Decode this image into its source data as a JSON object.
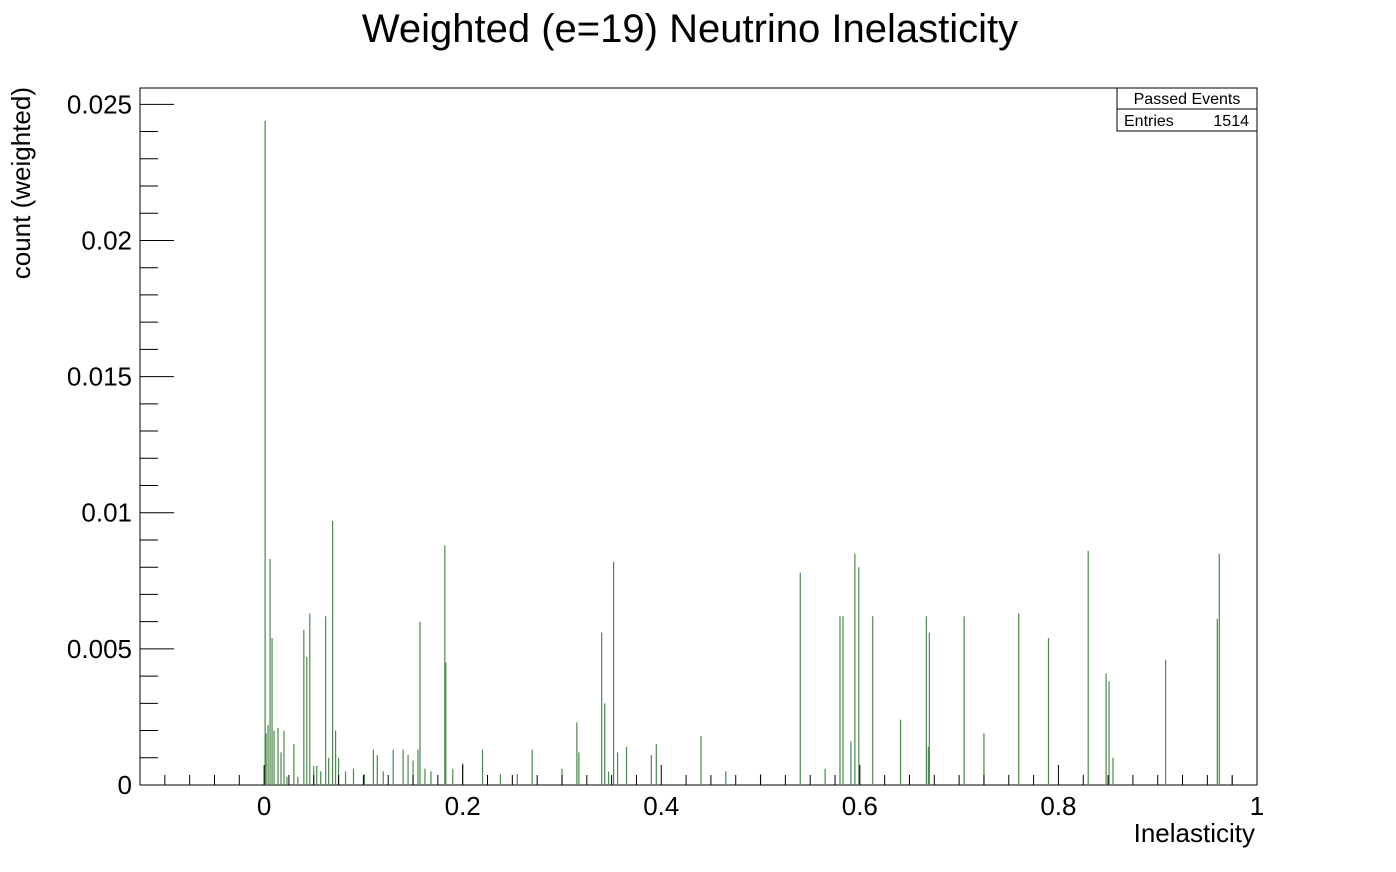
{
  "chart_data": {
    "type": "bar",
    "title": "Weighted (e=19) Neutrino Inelasticity",
    "xlabel": "Inelasticity",
    "ylabel": "count (weighted)",
    "xlim": [
      -0.125,
      1.0
    ],
    "ylim": [
      0,
      0.0256
    ],
    "x_ticks": [
      0,
      0.2,
      0.4,
      0.6,
      0.8,
      1
    ],
    "x_tick_labels": [
      "0",
      "0.2",
      "0.4",
      "0.6",
      "0.8",
      "1"
    ],
    "y_ticks": [
      0,
      0.005,
      0.01,
      0.015,
      0.02,
      0.025
    ],
    "y_tick_labels": [
      "0",
      "0.005",
      "0.01",
      "0.015",
      "0.02",
      "0.025"
    ],
    "grid": false,
    "bar_color": "#4a8a4a",
    "stats_box": {
      "header": "Passed Events",
      "entries_label": "Entries",
      "entries_value": "1514",
      "placement": "top-right"
    },
    "series": [
      {
        "x": [
          0.001,
          0.002,
          0.004,
          0.006,
          0.008,
          0.01,
          0.014,
          0.017,
          0.02,
          0.023,
          0.03,
          0.034,
          0.04,
          0.043,
          0.046,
          0.05,
          0.053,
          0.057,
          0.062,
          0.065,
          0.069,
          0.072,
          0.075,
          0.082,
          0.09,
          0.101,
          0.11,
          0.114,
          0.12,
          0.13,
          0.14,
          0.145,
          0.15,
          0.155,
          0.157,
          0.162,
          0.168,
          0.182,
          0.183,
          0.19,
          0.2,
          0.22,
          0.238,
          0.255,
          0.27,
          0.3,
          0.315,
          0.317,
          0.34,
          0.343,
          0.347,
          0.352,
          0.356,
          0.365,
          0.39,
          0.395,
          0.44,
          0.465,
          0.5,
          0.54,
          0.565,
          0.58,
          0.583,
          0.591,
          0.595,
          0.599,
          0.613,
          0.641,
          0.667,
          0.669,
          0.67,
          0.705,
          0.725,
          0.76,
          0.79,
          0.83,
          0.848,
          0.851,
          0.855,
          0.908,
          0.96,
          0.962,
          0.975
        ],
        "values": [
          0.0244,
          0.0019,
          0.0022,
          0.0083,
          0.0054,
          0.002,
          0.0021,
          0.0012,
          0.002,
          0.0003,
          0.0015,
          0.0003,
          0.0057,
          0.0047,
          0.0063,
          0.0007,
          0.0007,
          0.0005,
          0.0062,
          0.001,
          0.0097,
          0.002,
          0.001,
          0.0005,
          0.0006,
          0.0004,
          0.0013,
          0.0011,
          0.0005,
          0.0013,
          0.0013,
          0.0011,
          0.0009,
          0.0013,
          0.006,
          0.0006,
          0.0005,
          0.0088,
          0.0045,
          0.0006,
          0.0008,
          0.0013,
          0.0004,
          0.0004,
          0.0013,
          0.0006,
          0.0023,
          0.0012,
          0.0056,
          0.003,
          0.0005,
          0.0082,
          0.0012,
          0.0014,
          0.0011,
          0.0015,
          0.0018,
          0.0005,
          0.0004,
          0.0078,
          0.0006,
          0.0062,
          0.0062,
          0.0016,
          0.0085,
          0.008,
          0.0062,
          0.0024,
          0.0062,
          0.0014,
          0.0056,
          0.0062,
          0.0019,
          0.0063,
          0.0054,
          0.0086,
          0.0041,
          0.0038,
          0.001,
          0.0046,
          0.0061,
          0.0085,
          0.0003
        ]
      }
    ]
  }
}
